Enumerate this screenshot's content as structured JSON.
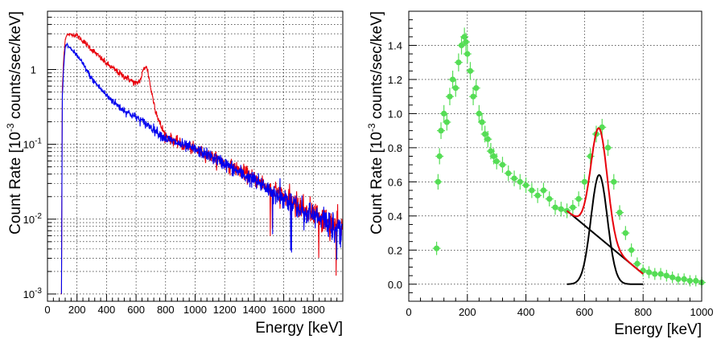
{
  "chart_data": [
    {
      "type": "line",
      "panel": "left",
      "ylog": true,
      "grid": true,
      "xlabel": "Energy [keV]",
      "ylabel_pre": "Count Rate [10",
      "ylabel_exp": "-3",
      "ylabel_post": " counts/sec/keV]",
      "xlim": [
        0,
        2000
      ],
      "ylim": [
        0.0008,
        6
      ],
      "x_ticks": [
        0,
        200,
        400,
        600,
        800,
        1000,
        1200,
        1400,
        1600,
        1800
      ],
      "x_tick_labels": [
        "0",
        "200",
        "400",
        "600",
        "800",
        "1000",
        "1200",
        "1400",
        "1600",
        "1800"
      ],
      "y_ticks": [
        0.001,
        0.01,
        0.1,
        1
      ],
      "y_tick_labels": [
        {
          "base": "10",
          "exp": "-3"
        },
        {
          "base": "10",
          "exp": "-2"
        },
        {
          "base": "10",
          "exp": "-1"
        },
        {
          "base": "1",
          "exp": ""
        }
      ],
      "series": [
        {
          "name": "red spectrum",
          "color": "#e8000b",
          "x": [
            95,
            100,
            110,
            120,
            130,
            150,
            200,
            250,
            300,
            400,
            500,
            550,
            600,
            630,
            650,
            665,
            680,
            700,
            730,
            760,
            800,
            900,
            1000,
            1100,
            1200,
            1300,
            1400,
            1500,
            1600,
            1700,
            1800,
            1900,
            1990
          ],
          "y": [
            0.001,
            0.5,
            1.4,
            2.5,
            2.9,
            2.95,
            2.85,
            2.3,
            1.85,
            1.2,
            0.85,
            0.75,
            0.64,
            0.73,
            1.0,
            1.12,
            0.95,
            0.55,
            0.3,
            0.19,
            0.13,
            0.1,
            0.085,
            0.07,
            0.055,
            0.045,
            0.035,
            0.026,
            0.02,
            0.015,
            0.012,
            0.009,
            0.007
          ]
        },
        {
          "name": "blue spectrum",
          "color": "#0000ee",
          "x": [
            95,
            100,
            110,
            120,
            130,
            150,
            200,
            250,
            300,
            400,
            500,
            600,
            700,
            800,
            900,
            1000,
            1100,
            1200,
            1300,
            1400,
            1500,
            1600,
            1700,
            1800,
            1900,
            1990
          ],
          "y": [
            0.001,
            0.4,
            1.1,
            2.0,
            2.2,
            1.95,
            1.55,
            1.1,
            0.75,
            0.45,
            0.3,
            0.23,
            0.17,
            0.12,
            0.1,
            0.085,
            0.07,
            0.055,
            0.042,
            0.033,
            0.025,
            0.019,
            0.014,
            0.011,
            0.009,
            0.007
          ]
        }
      ]
    },
    {
      "type": "scatter",
      "panel": "right",
      "grid": true,
      "xlabel": "Energy [keV]",
      "ylabel_pre": "Count Rate [10",
      "ylabel_exp": "-3",
      "ylabel_post": " counts/sec/keV]",
      "xlim": [
        0,
        1000
      ],
      "ylim": [
        -0.1,
        1.6
      ],
      "x_ticks": [
        0,
        200,
        400,
        600,
        800,
        1000
      ],
      "x_tick_labels": [
        "0",
        "200",
        "400",
        "600",
        "800",
        "1000"
      ],
      "y_ticks": [
        0,
        0.2,
        0.4,
        0.6,
        0.8,
        1.0,
        1.2,
        1.4
      ],
      "y_tick_labels": [
        "0.0",
        "0.2",
        "0.4",
        "0.6",
        "0.8",
        "1.0",
        "1.2",
        "1.4"
      ],
      "points": {
        "color": "#55dd55",
        "x": [
          95,
          100,
          105,
          110,
          120,
          130,
          140,
          150,
          160,
          170,
          180,
          190,
          195,
          200,
          210,
          220,
          230,
          240,
          250,
          260,
          270,
          280,
          290,
          300,
          320,
          340,
          360,
          380,
          400,
          420,
          440,
          460,
          480,
          500,
          520,
          540,
          560,
          580,
          600,
          620,
          640,
          660,
          680,
          700,
          720,
          740,
          760,
          780,
          800,
          820,
          840,
          860,
          880,
          900,
          920,
          940,
          960,
          980,
          1000
        ],
        "y": [
          0.21,
          0.6,
          0.75,
          0.9,
          1.0,
          0.95,
          1.1,
          1.2,
          1.15,
          1.3,
          1.4,
          1.45,
          1.42,
          1.35,
          1.25,
          1.1,
          1.15,
          1.0,
          0.95,
          0.88,
          0.85,
          0.78,
          0.75,
          0.72,
          0.7,
          0.65,
          0.62,
          0.6,
          0.58,
          0.55,
          0.52,
          0.55,
          0.5,
          0.45,
          0.44,
          0.43,
          0.45,
          0.5,
          0.6,
          0.75,
          0.88,
          0.92,
          0.8,
          0.6,
          0.42,
          0.3,
          0.2,
          0.12,
          0.08,
          0.07,
          0.06,
          0.06,
          0.05,
          0.04,
          0.03,
          0.03,
          0.02,
          0.02,
          0.01
        ]
      },
      "gauss_center": 650,
      "gauss_amplitude": 0.64,
      "gauss_sigma": 28,
      "fit_range": [
        540,
        800
      ],
      "background_line": {
        "x": [
          540,
          800
        ],
        "y": [
          0.43,
          0.06
        ]
      },
      "colors": {
        "fit": "#e8000b",
        "gauss": "#000000",
        "background": "#000000"
      }
    }
  ]
}
